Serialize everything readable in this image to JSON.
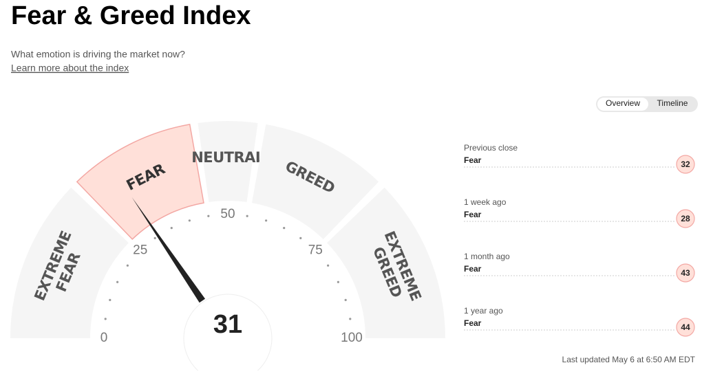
{
  "header": {
    "title": "Fear & Greed Index",
    "subtitle": "What emotion is driving the market now?",
    "link": "Learn more about the index"
  },
  "tabs": [
    "Overview",
    "Timeline"
  ],
  "gauge": {
    "value": 31,
    "lim": [
      0,
      100
    ],
    "ticks": [
      0,
      25,
      50,
      75,
      100
    ],
    "bands": [
      {
        "label": [
          "EXTREME",
          "FEAR"
        ],
        "range": [
          0,
          25
        ]
      },
      {
        "label": [
          "FEAR"
        ],
        "range": [
          25,
          45
        ]
      },
      {
        "label": [
          "NEUTRAL"
        ],
        "range": [
          45,
          55
        ]
      },
      {
        "label": [
          "GREED"
        ],
        "range": [
          55,
          75
        ]
      },
      {
        "label": [
          "EXTREME",
          "GREED"
        ],
        "range": [
          75,
          100
        ]
      }
    ]
  },
  "history": [
    {
      "when": "Previous close",
      "rating": "Fear",
      "value": 32
    },
    {
      "when": "1 week ago",
      "rating": "Fear",
      "value": 28
    },
    {
      "when": "1 month ago",
      "rating": "Fear",
      "value": 43
    },
    {
      "when": "1 year ago",
      "rating": "Fear",
      "value": 44
    }
  ],
  "footer": "Last updated May 6 at 6:50 AM EDT"
}
